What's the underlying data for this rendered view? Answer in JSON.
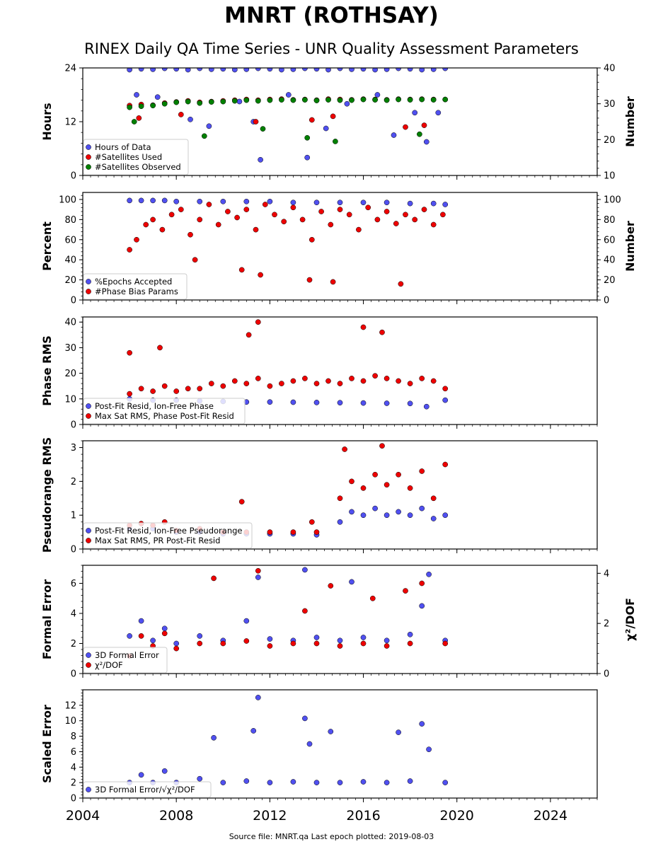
{
  "page": {
    "title": "MNRT (ROTHSAY)",
    "subtitle": "RINEX Daily QA Time Series - UNR Quality Assessment Parameters",
    "source": "Source file: MNRT.qa Last epoch plotted: 2019-08-03"
  },
  "colors": {
    "blue": "#5050f0",
    "red": "#ee0000",
    "green": "#008000"
  },
  "x_axis": {
    "range": [
      2004,
      2026
    ],
    "ticks": [
      2004,
      2008,
      2012,
      2016,
      2020,
      2024
    ],
    "tick_labels": [
      "2004",
      "2008",
      "2012",
      "2016",
      "2020",
      "2024"
    ]
  },
  "chart_data": [
    {
      "type": "scatter",
      "ylabel": "Hours",
      "ylim": [
        0,
        24
      ],
      "yticks": [
        0,
        12,
        24
      ],
      "ytick_labels": [
        "0",
        "12",
        "24"
      ],
      "y2label": "Number",
      "y2lim": [
        10,
        40
      ],
      "y2ticks": [
        10,
        20,
        30,
        40
      ],
      "y2tick_labels": [
        "10",
        "20",
        "30",
        "40"
      ],
      "legend": "lower-left",
      "series": [
        {
          "name": "Hours of Data",
          "axis": "left",
          "color": "blue",
          "x": [
            2006.0,
            2006.5,
            2007.0,
            2007.5,
            2008.0,
            2008.5,
            2009.0,
            2009.5,
            2010.0,
            2010.5,
            2011.0,
            2011.5,
            2012.0,
            2012.5,
            2013.0,
            2013.5,
            2014.0,
            2014.5,
            2015.0,
            2015.5,
            2016.0,
            2016.5,
            2017.0,
            2017.5,
            2018.0,
            2018.5,
            2019.0,
            2019.5,
            2006.3,
            2007.2,
            2008.6,
            2009.4,
            2010.7,
            2011.3,
            2011.6,
            2012.8,
            2013.6,
            2014.4,
            2015.3,
            2016.6,
            2017.3,
            2018.2,
            2018.7,
            2019.2
          ],
          "y": [
            23.6,
            23.8,
            23.7,
            23.9,
            23.8,
            23.6,
            23.9,
            23.7,
            23.8,
            23.6,
            23.7,
            23.9,
            23.8,
            23.6,
            23.7,
            23.9,
            23.8,
            23.6,
            23.9,
            23.7,
            23.8,
            23.6,
            23.7,
            23.9,
            23.8,
            23.6,
            23.7,
            23.9,
            18.0,
            17.5,
            12.5,
            11.0,
            16.5,
            12.0,
            3.5,
            18.0,
            4.0,
            10.5,
            16.0,
            18.0,
            9.0,
            14.0,
            7.5,
            14.0
          ]
        },
        {
          "name": "#Satellites Used",
          "axis": "right",
          "color": "red",
          "x": [
            2006.0,
            2006.5,
            2007.0,
            2007.5,
            2008.0,
            2008.5,
            2009.0,
            2009.5,
            2010.0,
            2010.5,
            2011.0,
            2011.5,
            2012.0,
            2012.5,
            2013.0,
            2013.5,
            2014.0,
            2014.5,
            2015.0,
            2015.5,
            2016.0,
            2016.5,
            2017.0,
            2017.5,
            2018.0,
            2018.5,
            2019.0,
            2019.5,
            2006.4,
            2008.2,
            2011.4,
            2013.8,
            2014.7,
            2017.8,
            2018.6
          ],
          "y": [
            29.5,
            29.8,
            29.6,
            30.2,
            30.5,
            30.8,
            30.4,
            30.6,
            30.8,
            31.0,
            31.2,
            31.0,
            31.2,
            31.3,
            31.1,
            31.2,
            31.0,
            31.3,
            31.2,
            31.1,
            31.3,
            31.2,
            31.1,
            31.3,
            31.2,
            31.3,
            31.2,
            31.2,
            26.0,
            27.0,
            25.0,
            25.5,
            26.5,
            23.5,
            24.0
          ]
        },
        {
          "name": "#Satellites Observed",
          "axis": "right",
          "color": "green",
          "x": [
            2006.0,
            2006.5,
            2007.0,
            2007.5,
            2008.0,
            2008.5,
            2009.0,
            2009.5,
            2010.0,
            2010.5,
            2011.0,
            2011.5,
            2012.0,
            2012.5,
            2013.0,
            2013.5,
            2014.0,
            2014.5,
            2015.0,
            2015.5,
            2016.0,
            2016.5,
            2017.0,
            2017.5,
            2018.0,
            2018.5,
            2019.0,
            2019.5,
            2006.2,
            2009.2,
            2011.7,
            2013.6,
            2014.8,
            2018.4
          ],
          "y": [
            29.0,
            29.3,
            29.5,
            30.0,
            30.4,
            30.6,
            30.2,
            30.5,
            30.6,
            30.8,
            31.0,
            30.8,
            31.0,
            31.1,
            31.0,
            31.1,
            30.9,
            31.1,
            31.0,
            31.0,
            31.2,
            31.1,
            31.0,
            31.2,
            31.1,
            31.2,
            31.1,
            31.2,
            25.0,
            21.0,
            23.0,
            20.5,
            19.5,
            21.5
          ]
        }
      ]
    },
    {
      "type": "scatter",
      "ylabel": "Percent",
      "ylim": [
        0,
        107
      ],
      "yticks": [
        0,
        20,
        40,
        60,
        80,
        100
      ],
      "ytick_labels": [
        "0",
        "20",
        "40",
        "60",
        "80",
        "100"
      ],
      "y2label": "Number",
      "y2lim": [
        0,
        107
      ],
      "y2ticks": [
        0,
        20,
        40,
        60,
        80,
        100
      ],
      "y2tick_labels": [
        "0",
        "20",
        "40",
        "60",
        "80",
        "100"
      ],
      "legend": "lower-left",
      "series": [
        {
          "name": "%Epochs Accepted",
          "axis": "left",
          "color": "blue",
          "x": [
            2006.0,
            2006.5,
            2007.0,
            2007.5,
            2008.0,
            2009.0,
            2010.0,
            2011.0,
            2012.0,
            2013.0,
            2014.0,
            2015.0,
            2016.0,
            2017.0,
            2018.0,
            2019.0,
            2019.5
          ],
          "y": [
            99,
            99,
            99,
            99,
            98,
            98,
            98,
            98,
            98,
            97,
            97,
            97,
            97,
            97,
            96,
            96,
            95
          ]
        },
        {
          "name": "#Phase Bias Params",
          "axis": "right",
          "color": "red",
          "x": [
            2006.0,
            2006.3,
            2006.7,
            2007.0,
            2007.4,
            2007.8,
            2008.2,
            2008.6,
            2009.0,
            2009.4,
            2009.8,
            2010.2,
            2010.6,
            2011.0,
            2011.4,
            2011.8,
            2012.2,
            2012.6,
            2013.0,
            2013.4,
            2013.8,
            2014.2,
            2014.6,
            2015.0,
            2015.4,
            2015.8,
            2016.2,
            2016.6,
            2017.0,
            2017.4,
            2017.8,
            2018.2,
            2018.6,
            2019.0,
            2019.4,
            2008.8,
            2010.8,
            2011.6,
            2013.7,
            2014.7,
            2017.6
          ],
          "y": [
            50,
            60,
            75,
            80,
            70,
            85,
            90,
            65,
            80,
            95,
            75,
            88,
            82,
            90,
            70,
            95,
            85,
            78,
            92,
            80,
            60,
            88,
            75,
            90,
            85,
            70,
            92,
            80,
            88,
            76,
            85,
            80,
            90,
            75,
            85,
            40,
            30,
            25,
            20,
            18,
            16
          ]
        }
      ]
    },
    {
      "type": "scatter",
      "ylabel": "Phase RMS",
      "ylim": [
        0,
        42
      ],
      "yticks": [
        0,
        10,
        20,
        30,
        40
      ],
      "ytick_labels": [
        "0",
        "10",
        "20",
        "30",
        "40"
      ],
      "legend": "lower-left",
      "series": [
        {
          "name": "Post-Fit Resid, Ion-Free Phase",
          "color": "blue",
          "x": [
            2006.0,
            2007.0,
            2008.0,
            2009.0,
            2010.0,
            2011.0,
            2012.0,
            2013.0,
            2014.0,
            2015.0,
            2016.0,
            2017.0,
            2018.0,
            2018.7,
            2019.5
          ],
          "y": [
            10,
            9.5,
            9.5,
            9.2,
            9.0,
            8.8,
            8.8,
            8.7,
            8.6,
            8.5,
            8.4,
            8.3,
            8.2,
            7.0,
            9.5
          ]
        },
        {
          "name": "Max Sat RMS, Phase Post-Fit Resid",
          "color": "red",
          "x": [
            2006.0,
            2006.5,
            2007.0,
            2007.5,
            2008.0,
            2008.5,
            2009.0,
            2009.5,
            2010.0,
            2010.5,
            2011.0,
            2011.5,
            2012.0,
            2012.5,
            2013.0,
            2013.5,
            2014.0,
            2014.5,
            2015.0,
            2015.5,
            2016.0,
            2016.5,
            2017.0,
            2017.5,
            2018.0,
            2018.5,
            2019.0,
            2019.5,
            2011.1,
            2011.5,
            2016.0,
            2016.8,
            2006.0,
            2007.3
          ],
          "y": [
            12,
            14,
            13,
            15,
            13,
            14,
            14,
            16,
            15,
            17,
            16,
            18,
            15,
            16,
            17,
            18,
            16,
            17,
            16,
            18,
            17,
            19,
            18,
            17,
            16,
            18,
            17,
            14,
            35,
            40,
            38,
            36,
            28,
            30
          ]
        }
      ]
    },
    {
      "type": "scatter",
      "ylabel": "Pseudorange RMS",
      "ylim": [
        0,
        3.2
      ],
      "yticks": [
        0,
        1,
        2,
        3
      ],
      "ytick_labels": [
        "0",
        "1",
        "2",
        "3"
      ],
      "legend": "lower-left",
      "series": [
        {
          "name": "Post-Fit Resid, Ion-Free Pseudorange",
          "color": "blue",
          "x": [
            2006.0,
            2007.0,
            2008.0,
            2009.0,
            2010.0,
            2011.0,
            2012.0,
            2013.0,
            2014.0,
            2015.0,
            2015.5,
            2016.0,
            2016.5,
            2017.0,
            2017.5,
            2018.0,
            2018.5,
            2019.0,
            2019.5
          ],
          "y": [
            0.6,
            0.6,
            0.5,
            0.5,
            0.45,
            0.45,
            0.45,
            0.45,
            0.42,
            0.8,
            1.1,
            1.0,
            1.2,
            1.0,
            1.1,
            1.0,
            1.2,
            0.9,
            1.0
          ]
        },
        {
          "name": "Max Sat RMS, PR Post-Fit Resid",
          "color": "red",
          "x": [
            2006.0,
            2006.5,
            2007.0,
            2007.5,
            2008.0,
            2009.0,
            2010.0,
            2010.8,
            2011.0,
            2012.0,
            2013.0,
            2013.8,
            2014.0,
            2015.0,
            2015.2,
            2015.5,
            2016.0,
            2016.5,
            2016.8,
            2017.0,
            2017.5,
            2018.0,
            2018.5,
            2019.0,
            2019.5
          ],
          "y": [
            0.7,
            0.75,
            0.7,
            0.8,
            0.55,
            0.6,
            0.5,
            1.4,
            0.5,
            0.5,
            0.5,
            0.8,
            0.5,
            1.5,
            2.95,
            2.0,
            1.8,
            2.2,
            3.05,
            1.9,
            2.2,
            1.8,
            2.3,
            1.5,
            2.5
          ]
        }
      ]
    },
    {
      "type": "scatter",
      "ylabel": "Formal Error",
      "ylim": [
        0,
        7.2
      ],
      "yticks": [
        0,
        2,
        4,
        6
      ],
      "ytick_labels": [
        "0",
        "2",
        "4",
        "6"
      ],
      "y2label": "χ²/DOF",
      "y2lim": [
        0,
        4.32
      ],
      "y2ticks": [
        0,
        2,
        4
      ],
      "y2tick_labels": [
        "0",
        "2",
        "4"
      ],
      "legend": "lower-left",
      "series": [
        {
          "name": "3D Formal Error",
          "axis": "left",
          "color": "blue",
          "x": [
            2006.0,
            2006.5,
            2007.0,
            2007.5,
            2008.0,
            2009.0,
            2010.0,
            2011.0,
            2011.5,
            2012.0,
            2013.0,
            2013.5,
            2014.0,
            2015.0,
            2015.5,
            2016.0,
            2017.0,
            2018.0,
            2018.5,
            2018.8,
            2019.5
          ],
          "y": [
            2.5,
            3.5,
            2.2,
            3.0,
            2.0,
            2.5,
            2.2,
            3.5,
            6.4,
            2.3,
            2.2,
            6.9,
            2.4,
            2.2,
            6.1,
            2.4,
            2.2,
            2.6,
            4.5,
            6.6,
            2.2
          ]
        },
        {
          "name": "χ²/DOF",
          "axis": "right",
          "color": "red",
          "x": [
            2006.0,
            2006.5,
            2007.0,
            2007.5,
            2008.0,
            2009.0,
            2009.6,
            2010.0,
            2011.0,
            2011.5,
            2012.0,
            2013.0,
            2013.5,
            2014.0,
            2014.6,
            2015.0,
            2016.0,
            2016.4,
            2017.0,
            2017.8,
            2018.0,
            2018.5,
            2019.5
          ],
          "y": [
            0.7,
            1.5,
            1.1,
            1.6,
            1.0,
            1.2,
            3.8,
            1.2,
            1.3,
            4.1,
            1.1,
            1.2,
            2.5,
            1.2,
            3.5,
            1.1,
            1.2,
            3.0,
            1.1,
            3.3,
            1.2,
            3.6,
            1.2
          ]
        }
      ]
    },
    {
      "type": "scatter",
      "ylabel": "Scaled Error",
      "ylim": [
        0,
        14
      ],
      "yticks": [
        0,
        2,
        4,
        6,
        8,
        10,
        12
      ],
      "ytick_labels": [
        "0",
        "2",
        "4",
        "6",
        "8",
        "10",
        "12"
      ],
      "legend": "lower-left",
      "series": [
        {
          "name": "3D Formal Error/√χ²/DOF",
          "color": "blue",
          "x": [
            2006.0,
            2006.5,
            2007.0,
            2007.5,
            2008.0,
            2009.0,
            2009.6,
            2010.0,
            2011.0,
            2011.3,
            2011.5,
            2012.0,
            2013.0,
            2013.5,
            2013.7,
            2014.0,
            2014.6,
            2015.0,
            2016.0,
            2017.0,
            2017.5,
            2018.0,
            2018.5,
            2018.8,
            2019.5
          ],
          "y": [
            2.0,
            3.0,
            2.0,
            3.5,
            2.0,
            2.5,
            7.8,
            2.0,
            2.2,
            8.7,
            13.0,
            2.0,
            2.1,
            10.3,
            7.0,
            2.0,
            8.6,
            2.0,
            2.1,
            2.0,
            8.5,
            2.2,
            9.6,
            6.3,
            2.0
          ]
        }
      ]
    }
  ]
}
